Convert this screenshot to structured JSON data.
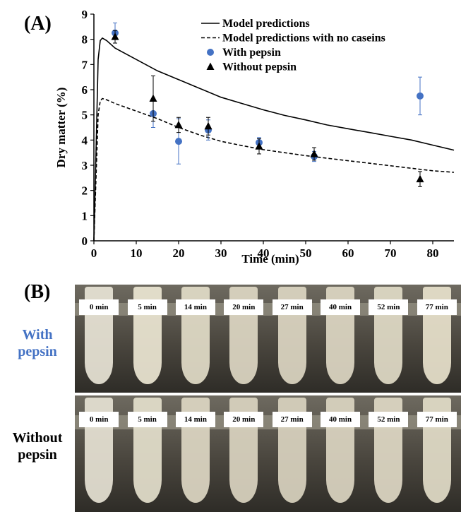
{
  "panel_a_label": "(A)",
  "panel_b_label": "(B)",
  "chart_data": {
    "type": "scatter",
    "xlabel": "Time (min)",
    "ylabel": "Dry matter (%)",
    "xlim": [
      0,
      85
    ],
    "ylim": [
      0,
      9
    ],
    "xticks": [
      "0",
      "10",
      "20",
      "30",
      "40",
      "50",
      "60",
      "70",
      "80"
    ],
    "yticks": [
      "0",
      "1",
      "2",
      "3",
      "4",
      "5",
      "6",
      "7",
      "8",
      "9"
    ],
    "grid": false,
    "legend_position": "top-right",
    "series": [
      {
        "name": "Model predictions",
        "style": "solid-line",
        "color": "#000000",
        "x": [
          0,
          0.5,
          1,
          1.5,
          2,
          3,
          5,
          10,
          15,
          20,
          25,
          30,
          35,
          40,
          45,
          50,
          55,
          60,
          65,
          70,
          75,
          80,
          85
        ],
        "y": [
          0,
          3.5,
          7.2,
          7.95,
          8.05,
          7.95,
          7.65,
          7.2,
          6.75,
          6.4,
          6.05,
          5.7,
          5.45,
          5.2,
          4.98,
          4.8,
          4.6,
          4.45,
          4.3,
          4.15,
          4.0,
          3.8,
          3.6
        ]
      },
      {
        "name": "Model predictions with no caseins",
        "style": "dashed-line",
        "color": "#000000",
        "x": [
          0,
          0.5,
          1,
          1.5,
          2,
          3,
          5,
          10,
          15,
          20,
          25,
          30,
          35,
          40,
          45,
          50,
          55,
          60,
          65,
          70,
          75,
          80,
          85
        ],
        "y": [
          0,
          2.5,
          5.0,
          5.55,
          5.65,
          5.6,
          5.45,
          5.15,
          4.85,
          4.5,
          4.2,
          3.95,
          3.78,
          3.62,
          3.5,
          3.38,
          3.28,
          3.18,
          3.08,
          2.98,
          2.88,
          2.78,
          2.72
        ]
      },
      {
        "name": "With pepsin",
        "style": "circle-markers",
        "color": "#4472c4",
        "x": [
          5,
          14,
          20,
          27,
          39,
          52,
          77
        ],
        "y": [
          8.25,
          5.05,
          3.95,
          4.4,
          3.9,
          3.35,
          5.75
        ],
        "error": [
          0.4,
          0.55,
          0.9,
          0.4,
          0.2,
          0.2,
          0.75
        ]
      },
      {
        "name": "Without pepsin",
        "style": "triangle-markers",
        "color": "#000000",
        "x": [
          5,
          14,
          20,
          27,
          39,
          52,
          77
        ],
        "y": [
          8.1,
          5.65,
          4.6,
          4.55,
          3.75,
          3.45,
          2.45
        ],
        "error": [
          0.25,
          0.9,
          0.3,
          0.35,
          0.3,
          0.25,
          0.3
        ]
      }
    ]
  },
  "photos": {
    "row_labels": {
      "with": [
        "With",
        "pepsin"
      ],
      "without": [
        "Without",
        "pepsin"
      ]
    },
    "with_label_color": "#4472c4",
    "tube_labels": [
      "0 min",
      "5 min",
      "14 min",
      "20 min",
      "27 min",
      "40 min",
      "52 min",
      "77 min"
    ],
    "with_pepsin_fill_colors": [
      "#e8e4d6",
      "#ece6d2",
      "#e2dcc8",
      "#ddd7c3",
      "#dcd6c2",
      "#ddd7c3",
      "#e1dbc7",
      "#e8e2cc"
    ],
    "without_pepsin_fill_colors": [
      "#e6e2d4",
      "#e4dfcc",
      "#ddd7c3",
      "#dad4c0",
      "#d9d3bf",
      "#dbd5c1",
      "#ded8c4",
      "#e2dcc8"
    ]
  }
}
